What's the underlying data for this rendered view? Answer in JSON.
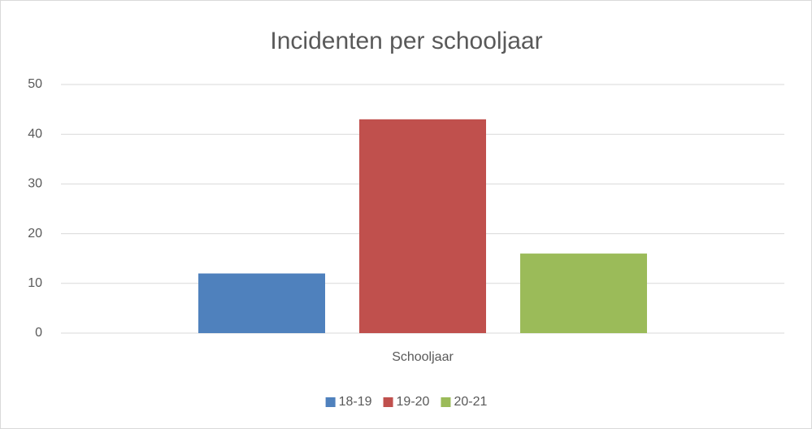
{
  "chart_data": {
    "type": "bar",
    "title": "Incidenten per schooljaar",
    "categories": [
      "Schooljaar"
    ],
    "series": [
      {
        "name": "18-19",
        "color": "#4f81bd",
        "values": [
          12
        ]
      },
      {
        "name": "19-20",
        "color": "#c0504d",
        "values": [
          43
        ]
      },
      {
        "name": "20-21",
        "color": "#9bbb59",
        "values": [
          16
        ]
      }
    ],
    "ylim": [
      0,
      50
    ],
    "yticks": [
      0,
      10,
      20,
      30,
      40,
      50
    ],
    "grid": true,
    "legend": "bottom"
  }
}
